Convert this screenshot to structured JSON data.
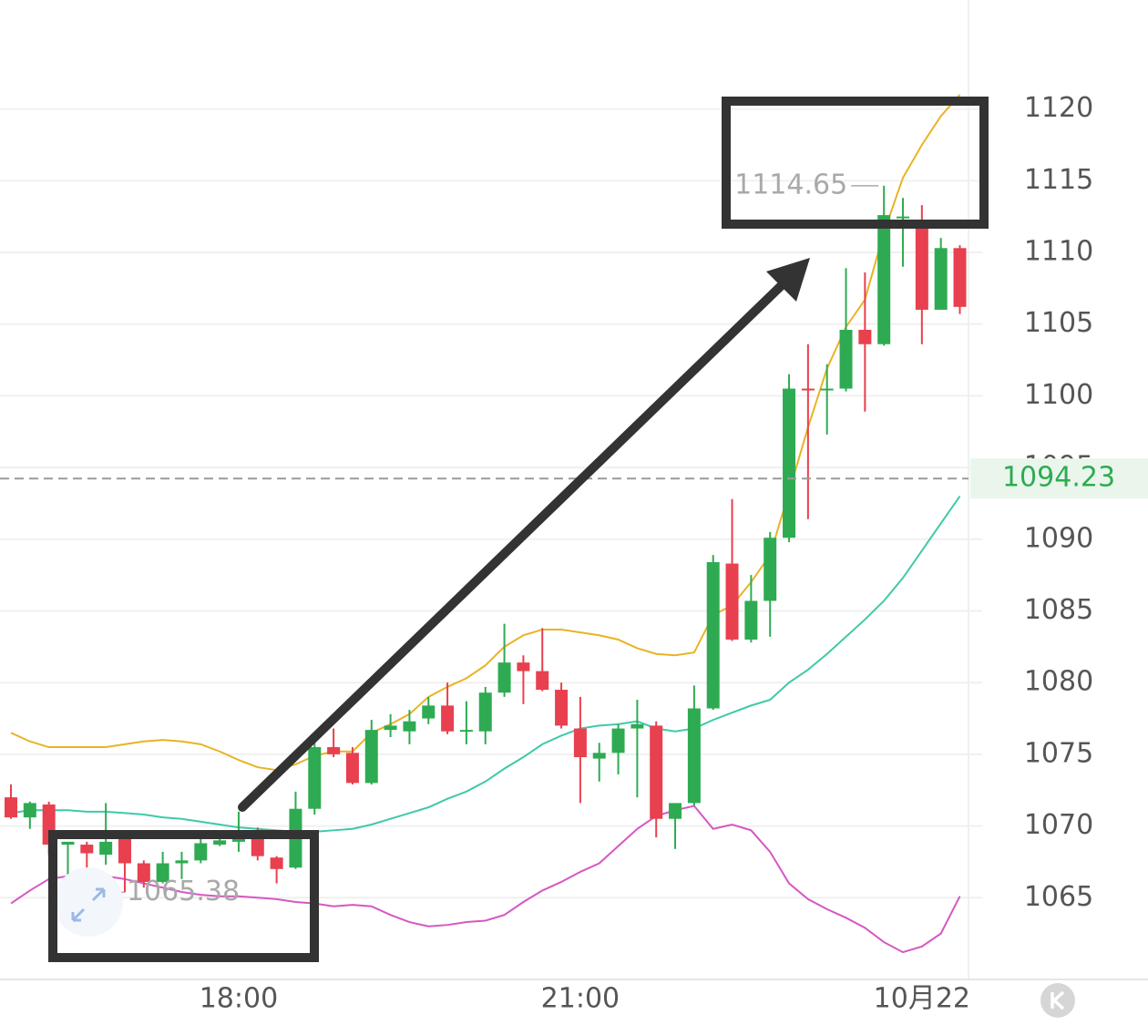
{
  "chart_data": {
    "type": "candlestick",
    "categories": [
      null,
      null,
      null,
      null,
      null,
      null,
      null,
      null,
      null,
      null,
      null,
      null,
      "18:00",
      null,
      null,
      null,
      null,
      null,
      null,
      null,
      null,
      null,
      null,
      null,
      null,
      null,
      null,
      null,
      null,
      null,
      "21:00",
      null,
      null,
      null,
      null,
      null,
      null,
      null,
      null,
      null,
      null,
      null,
      null,
      null,
      null,
      null,
      null,
      null,
      "10月22",
      null,
      null
    ],
    "open": [
      1072.0,
      1070.6,
      1071.5,
      1068.7,
      1068.7,
      1068.0,
      1069.1,
      1067.4,
      1066.1,
      1067.4,
      1067.6,
      1068.7,
      1068.9,
      1069.1,
      1067.8,
      1067.1,
      1071.2,
      1075.5,
      1075.1,
      1073.0,
      1076.7,
      1076.6,
      1077.5,
      1078.4,
      1076.6,
      1076.6,
      1079.3,
      1081.4,
      1080.8,
      1079.5,
      1076.8,
      1074.7,
      1075.1,
      1076.8,
      1077.0,
      1070.5,
      1071.6,
      1078.2,
      1088.3,
      1083.0,
      1085.7,
      1090.1,
      1100.5,
      1100.4,
      1100.5,
      1104.6,
      1103.6,
      1112.4,
      1111.7,
      1106.0,
      1110.3
    ],
    "high": [
      1072.9,
      1071.7,
      1071.7,
      1068.9,
      1068.9,
      1071.6,
      1069.2,
      1067.6,
      1068.2,
      1068.2,
      1069.2,
      1069.3,
      1071.0,
      1069.9,
      1067.9,
      1072.4,
      1075.9,
      1076.8,
      1075.5,
      1077.4,
      1077.8,
      1078.1,
      1079.0,
      1080.0,
      1078.7,
      1079.7,
      1084.1,
      1081.9,
      1083.8,
      1080.0,
      1079.0,
      1075.8,
      1077.1,
      1078.8,
      1077.3,
      1071.4,
      1079.8,
      1088.9,
      1092.8,
      1087.5,
      1090.5,
      1101.5,
      1103.6,
      1102.2,
      1108.9,
      1108.6,
      1114.65,
      1113.8,
      1113.3,
      1111.0,
      1110.5
    ],
    "low": [
      1070.5,
      1069.8,
      1068.0,
      1065.7,
      1065.5,
      1067.3,
      1065.38,
      1065.7,
      1066.0,
      1066.3,
      1067.4,
      1068.6,
      1068.2,
      1067.6,
      1066.0,
      1067.0,
      1070.8,
      1074.8,
      1072.9,
      1072.9,
      1076.2,
      1075.7,
      1077.1,
      1076.4,
      1075.7,
      1075.7,
      1079.0,
      1078.5,
      1079.4,
      1076.8,
      1071.6,
      1073.1,
      1073.6,
      1072.0,
      1069.2,
      1068.4,
      1071.4,
      1078.1,
      1082.9,
      1082.8,
      1083.2,
      1089.8,
      1091.4,
      1097.3,
      1100.3,
      1098.9,
      1103.5,
      1109.0,
      1103.6,
      1106.0,
      1105.7
    ],
    "close": [
      1070.6,
      1071.6,
      1068.7,
      1068.9,
      1068.1,
      1068.9,
      1067.4,
      1066.1,
      1067.4,
      1067.6,
      1068.8,
      1069.0,
      1069.3,
      1067.9,
      1067.0,
      1071.2,
      1075.5,
      1075.0,
      1073.0,
      1076.7,
      1077.0,
      1077.3,
      1078.4,
      1076.6,
      1076.7,
      1079.3,
      1081.4,
      1080.8,
      1079.5,
      1077.0,
      1074.8,
      1075.1,
      1076.8,
      1077.1,
      1070.5,
      1071.6,
      1078.2,
      1088.4,
      1083.0,
      1085.7,
      1090.1,
      1100.5,
      1100.4,
      1100.5,
      1104.6,
      1103.6,
      1112.6,
      1112.5,
      1106.0,
      1110.3,
      1106.2
    ],
    "up_color": "#2eab52",
    "down_color": "#e8404e",
    "overlays": [
      {
        "color": "#e9b324",
        "values": [
          1076.5,
          1075.9,
          1075.5,
          1075.5,
          1075.5,
          1075.5,
          1075.7,
          1075.9,
          1076.0,
          1075.9,
          1075.7,
          1075.2,
          1074.6,
          1074.1,
          1073.9,
          1074.3,
          1074.9,
          1075.2,
          1075.2,
          1076.5,
          1077.1,
          1077.8,
          1079.0,
          1079.7,
          1080.3,
          1081.2,
          1082.5,
          1083.3,
          1083.7,
          1083.7,
          1083.5,
          1083.3,
          1083.0,
          1082.4,
          1082.0,
          1081.9,
          1082.1,
          1084.7,
          1085.4,
          1087.0,
          1088.9,
          1093.3,
          1097.8,
          1101.9,
          1104.8,
          1106.7,
          1111.4,
          1115.2,
          1117.5,
          1119.5,
          1121.0
        ]
      },
      {
        "color": "#3fc9a8",
        "values": [
          1070.9,
          1071.1,
          1071.1,
          1071.1,
          1071.0,
          1071.0,
          1070.9,
          1070.8,
          1070.6,
          1070.5,
          1070.3,
          1070.1,
          1069.9,
          1069.8,
          1069.7,
          1069.6,
          1069.6,
          1069.7,
          1069.8,
          1070.1,
          1070.5,
          1070.9,
          1071.3,
          1071.9,
          1072.4,
          1073.1,
          1074.0,
          1074.8,
          1075.7,
          1076.3,
          1076.8,
          1077.0,
          1077.1,
          1077.3,
          1076.8,
          1076.6,
          1076.8,
          1077.4,
          1077.9,
          1078.4,
          1078.8,
          1080.0,
          1080.9,
          1082.0,
          1083.2,
          1084.4,
          1085.7,
          1087.3,
          1089.2,
          1091.1,
          1093.0
        ]
      },
      {
        "color": "#d657c3",
        "values": [
          1064.6,
          1065.5,
          1066.3,
          1066.5,
          1066.3,
          1066.5,
          1066.3,
          1066.0,
          1065.7,
          1065.4,
          1065.2,
          1065.1,
          1065.1,
          1065.0,
          1064.9,
          1064.7,
          1064.6,
          1064.4,
          1064.5,
          1064.4,
          1063.8,
          1063.3,
          1063.0,
          1063.1,
          1063.3,
          1063.4,
          1063.8,
          1064.7,
          1065.5,
          1066.1,
          1066.8,
          1067.4,
          1068.6,
          1069.8,
          1070.7,
          1071.1,
          1071.4,
          1069.8,
          1070.1,
          1069.7,
          1068.2,
          1066.0,
          1064.9,
          1064.2,
          1063.6,
          1062.9,
          1061.9,
          1061.2,
          1061.6,
          1062.5,
          1065.1
        ]
      }
    ],
    "last_price": 1094.23,
    "ylim": [
      1059.3,
      1127.6
    ],
    "yticks": [
      1065,
      1070,
      1075,
      1080,
      1085,
      1090,
      1095,
      1100,
      1105,
      1110,
      1115,
      1120
    ],
    "grid": true
  }
}
